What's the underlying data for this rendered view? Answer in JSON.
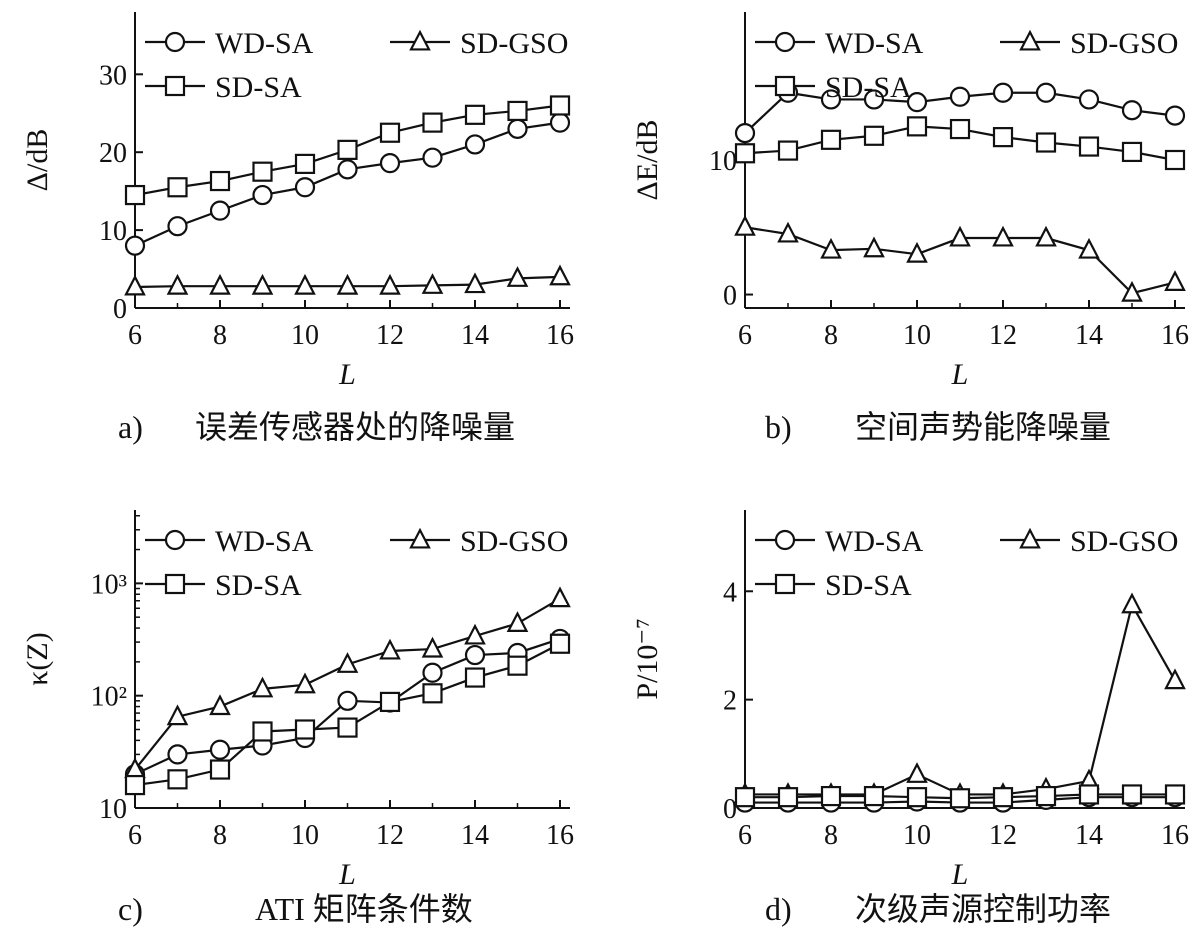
{
  "figure": {
    "panels": [
      {
        "ylabel": "Δ/dB",
        "xlabel": "L",
        "caption_tag": "a)",
        "caption_text": "误差传感器处的降噪量",
        "yticks": [
          "0",
          "10",
          "20",
          "30"
        ]
      },
      {
        "ylabel": "ΔE/dB",
        "xlabel": "L",
        "caption_tag": "b)",
        "caption_text": "空间声势能降噪量",
        "yticks": [
          "0",
          "10"
        ]
      },
      {
        "ylabel": "κ(Z)",
        "xlabel": "L",
        "caption_tag": "c)",
        "caption_text": "ATI 矩阵条件数",
        "yticks": [
          "10",
          "10²",
          "10³"
        ]
      },
      {
        "ylabel": "P/10⁻⁷",
        "xlabel": "L",
        "caption_tag": "d)",
        "caption_text": "次级声源控制功率",
        "yticks": [
          "0",
          "2",
          "4"
        ]
      }
    ]
  },
  "chart_data": [
    {
      "type": "line",
      "x": [
        6,
        7,
        8,
        9,
        10,
        11,
        12,
        13,
        14,
        15,
        16
      ],
      "xlim": [
        6,
        16
      ],
      "ylim": [
        0,
        38
      ],
      "yscale": "linear",
      "xticks": [
        6,
        8,
        10,
        12,
        14,
        16
      ],
      "ytick_values": [
        0,
        10,
        20,
        30
      ],
      "xlabel": "L",
      "ylabel": "Δ/dB",
      "legend_position": "top",
      "series": [
        {
          "name": "WD-SA",
          "marker": "circle",
          "values": [
            8,
            10.5,
            12.5,
            14.5,
            15.5,
            17.8,
            18.6,
            19.3,
            21,
            23,
            23.8
          ]
        },
        {
          "name": "SD-GSO",
          "marker": "triangle",
          "values": [
            2.7,
            2.8,
            2.8,
            2.8,
            2.8,
            2.8,
            2.8,
            2.9,
            3,
            3.8,
            4
          ]
        },
        {
          "name": "SD-SA",
          "marker": "square",
          "values": [
            14.5,
            15.5,
            16.3,
            17.5,
            18.5,
            20.3,
            22.5,
            23.8,
            24.8,
            25.3,
            26
          ]
        }
      ]
    },
    {
      "type": "line",
      "x": [
        6,
        7,
        8,
        9,
        10,
        11,
        12,
        13,
        14,
        15,
        16
      ],
      "xlim": [
        6,
        16
      ],
      "ylim": [
        -1,
        21
      ],
      "yscale": "linear",
      "xticks": [
        6,
        8,
        10,
        12,
        14,
        16
      ],
      "ytick_values": [
        0,
        10
      ],
      "xlabel": "L",
      "ylabel": "ΔE/dB",
      "legend_position": "top",
      "series": [
        {
          "name": "WD-SA",
          "marker": "circle",
          "values": [
            12,
            15,
            14.5,
            14.5,
            14.3,
            14.7,
            15,
            15,
            14.5,
            13.7,
            13.3
          ]
        },
        {
          "name": "SD-GSO",
          "marker": "triangle",
          "values": [
            5,
            4.5,
            3.3,
            3.4,
            3,
            4.2,
            4.2,
            4.2,
            3.3,
            0.1,
            0.9
          ]
        },
        {
          "name": "SD-SA",
          "marker": "square",
          "values": [
            10.5,
            10.7,
            11.5,
            11.8,
            12.5,
            12.3,
            11.7,
            11.3,
            11,
            10.6,
            10
          ]
        }
      ]
    },
    {
      "type": "line",
      "x": [
        6,
        7,
        8,
        9,
        10,
        11,
        12,
        13,
        14,
        15,
        16
      ],
      "xlim": [
        6,
        16
      ],
      "ylim": [
        10,
        4500
      ],
      "yscale": "log",
      "xticks": [
        6,
        8,
        10,
        12,
        14,
        16
      ],
      "ytick_values": [
        10,
        100,
        1000
      ],
      "xlabel": "L",
      "ylabel": "κ(Z)",
      "legend_position": "top",
      "series": [
        {
          "name": "WD-SA",
          "marker": "circle",
          "values": [
            20,
            30,
            33,
            36,
            42,
            90,
            87,
            160,
            230,
            240,
            320
          ]
        },
        {
          "name": "SD-GSO",
          "marker": "triangle",
          "values": [
            22,
            65,
            80,
            115,
            125,
            190,
            250,
            260,
            340,
            440,
            730
          ]
        },
        {
          "name": "SD-SA",
          "marker": "square",
          "values": [
            16,
            18,
            22,
            48,
            50,
            52,
            88,
            105,
            145,
            185,
            290
          ]
        }
      ]
    },
    {
      "type": "line",
      "x": [
        6,
        7,
        8,
        9,
        10,
        11,
        12,
        13,
        14,
        15,
        16
      ],
      "xlim": [
        6,
        16
      ],
      "ylim": [
        0,
        5.5
      ],
      "yscale": "linear",
      "xticks": [
        6,
        8,
        10,
        12,
        14,
        16
      ],
      "ytick_values": [
        0,
        2,
        4
      ],
      "xlabel": "L",
      "ylabel": "P/10⁻⁷",
      "legend_position": "top",
      "series": [
        {
          "name": "WD-SA",
          "marker": "circle",
          "values": [
            0.1,
            0.1,
            0.1,
            0.1,
            0.12,
            0.1,
            0.1,
            0.15,
            0.2,
            0.2,
            0.2
          ]
        },
        {
          "name": "SD-GSO",
          "marker": "triangle",
          "values": [
            0.25,
            0.25,
            0.25,
            0.25,
            0.62,
            0.25,
            0.25,
            0.35,
            0.5,
            3.75,
            2.35
          ]
        },
        {
          "name": "SD-SA",
          "marker": "square",
          "values": [
            0.2,
            0.2,
            0.22,
            0.22,
            0.2,
            0.18,
            0.2,
            0.22,
            0.25,
            0.25,
            0.25
          ]
        }
      ]
    }
  ]
}
